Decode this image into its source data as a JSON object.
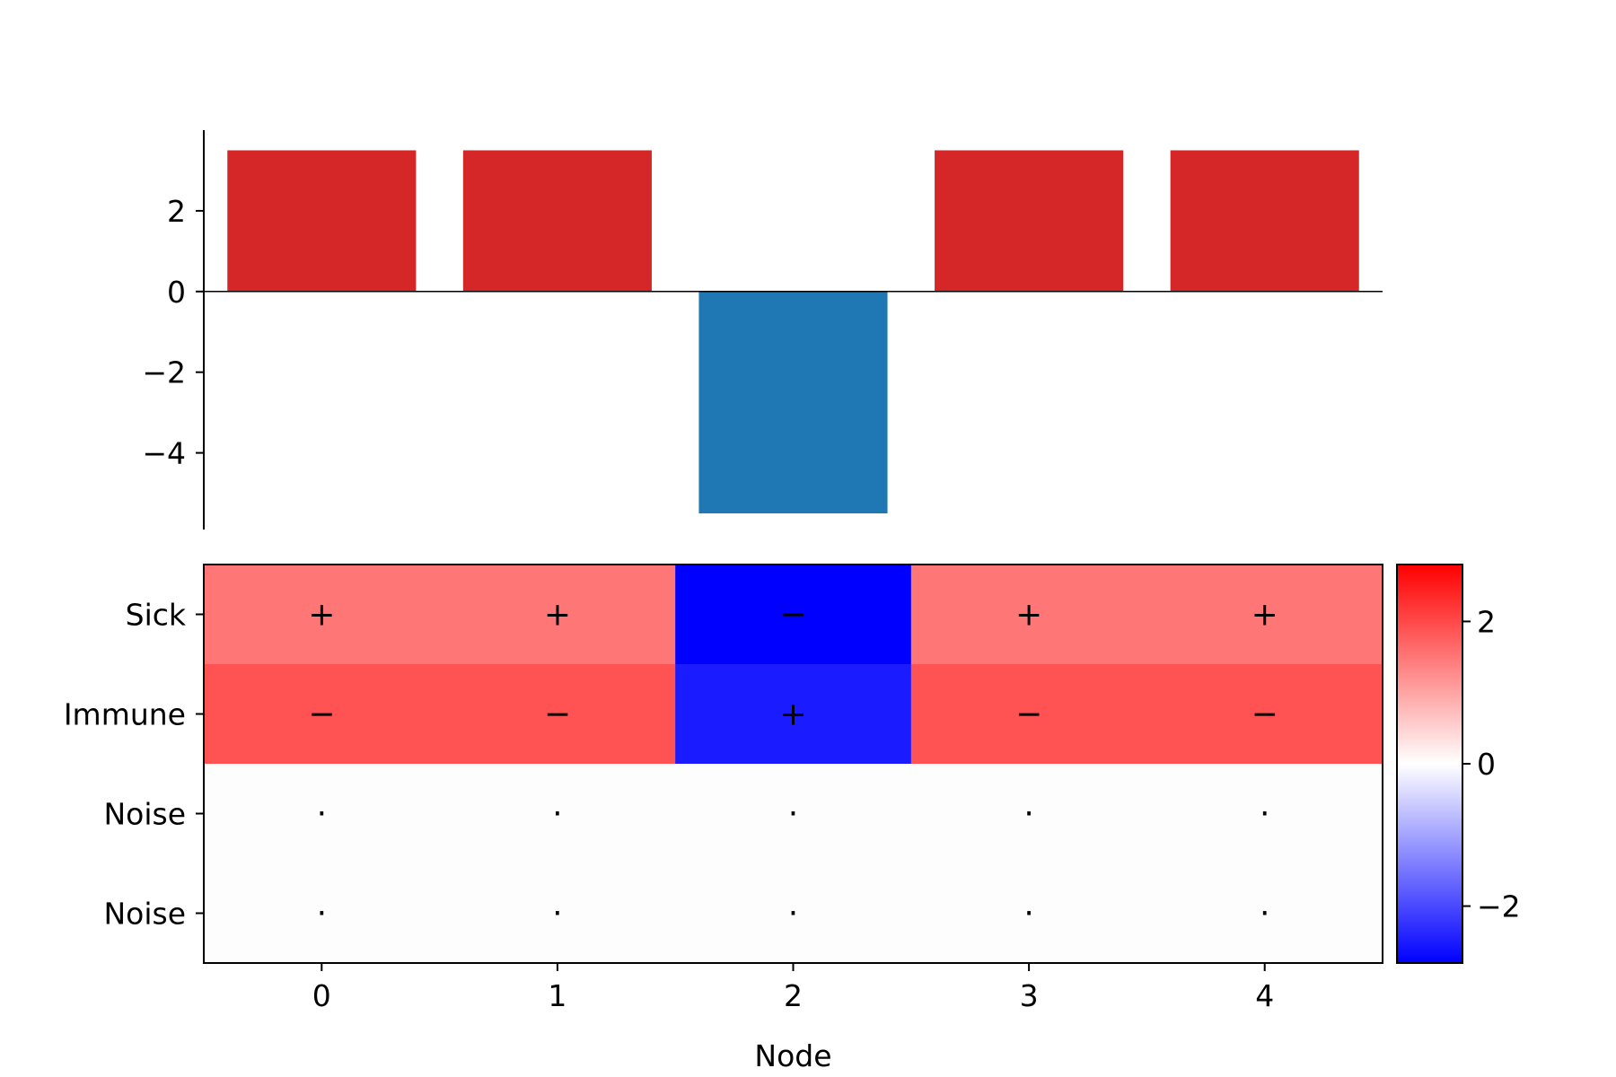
{
  "chart_data": [
    {
      "type": "bar",
      "categories": [
        "0",
        "1",
        "2",
        "3",
        "4"
      ],
      "values": [
        3.5,
        3.5,
        -5.5,
        3.5,
        3.5
      ],
      "bar_colors": [
        "#d62728",
        "#d62728",
        "#1f77b4",
        "#d62728",
        "#d62728"
      ],
      "ylim": [
        -5.9,
        4.0
      ],
      "yticks": [
        2,
        0,
        -2,
        -4
      ],
      "ytick_labels": [
        "2",
        "0",
        "−2",
        "−4"
      ],
      "xticks_visible": false,
      "spines": [
        "left"
      ],
      "zero_line": true
    },
    {
      "type": "heatmap",
      "columns": [
        "0",
        "1",
        "2",
        "3",
        "4"
      ],
      "rows": [
        "Sick",
        "Immune",
        "Noise",
        "Noise"
      ],
      "xlabel": "Node",
      "values": [
        [
          1.5,
          1.5,
          -2.8,
          1.5,
          1.5
        ],
        [
          1.9,
          1.9,
          -2.5,
          1.9,
          1.9
        ],
        [
          0.0,
          0.0,
          0.0,
          0.0,
          0.0
        ],
        [
          0.0,
          0.0,
          0.0,
          0.0,
          0.0
        ]
      ],
      "signs": [
        [
          "+",
          "+",
          "−",
          "+",
          "+"
        ],
        [
          "−",
          "−",
          "+",
          "−",
          "−"
        ],
        [
          "·",
          "·",
          "·",
          "·",
          "·"
        ],
        [
          "·",
          "·",
          "·",
          "·",
          "·"
        ]
      ],
      "colormap": "bwr",
      "vrange": [
        -2.8,
        2.8
      ],
      "colorbar_ticks": [
        2,
        0,
        -2
      ],
      "colorbar_tick_labels": [
        "2",
        "0",
        "−2"
      ]
    }
  ]
}
